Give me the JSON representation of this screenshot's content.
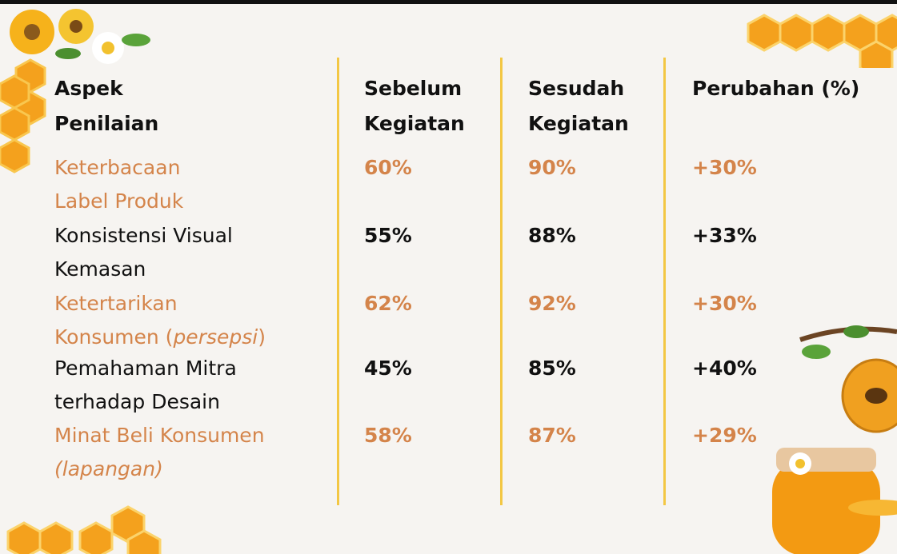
{
  "table": {
    "header": [
      [
        "Aspek",
        "Penilaian"
      ],
      [
        "Sebelum",
        "Kegiatan"
      ],
      [
        "Sesudah",
        "Kegiatan"
      ],
      [
        "Perubahan (%)"
      ]
    ],
    "rows": [
      {
        "color": "#d4844a",
        "aspect": [
          "Keterbacaan",
          "Label Produk"
        ],
        "before": "60%",
        "after": "90%",
        "change": "+30%"
      },
      {
        "color": "#111111",
        "aspect": [
          "Konsistensi Visual",
          "Kemasan"
        ],
        "before": "55%",
        "after": "88%",
        "change": "+33%"
      },
      {
        "color": "#d4844a",
        "aspect": [
          "Ketertarikan",
          [
            {
              "text": "Konsumen ("
            },
            {
              "text": "persepsi",
              "italic": true
            },
            {
              "text": ")"
            }
          ]
        ],
        "before": "62%",
        "after": "92%",
        "change": "+30%"
      },
      {
        "color": "#111111",
        "aspect": [
          "Pemahaman Mitra",
          "terhadap Desain"
        ],
        "before": "45%",
        "after": "85%",
        "change": "+40%"
      },
      {
        "color": "#d4844a",
        "aspect": [
          "Minat Beli Konsumen",
          [
            {
              "text": "(lapangan)",
              "italic": true
            }
          ]
        ],
        "before": "58%",
        "after": "87%",
        "change": "+29%"
      }
    ]
  }
}
